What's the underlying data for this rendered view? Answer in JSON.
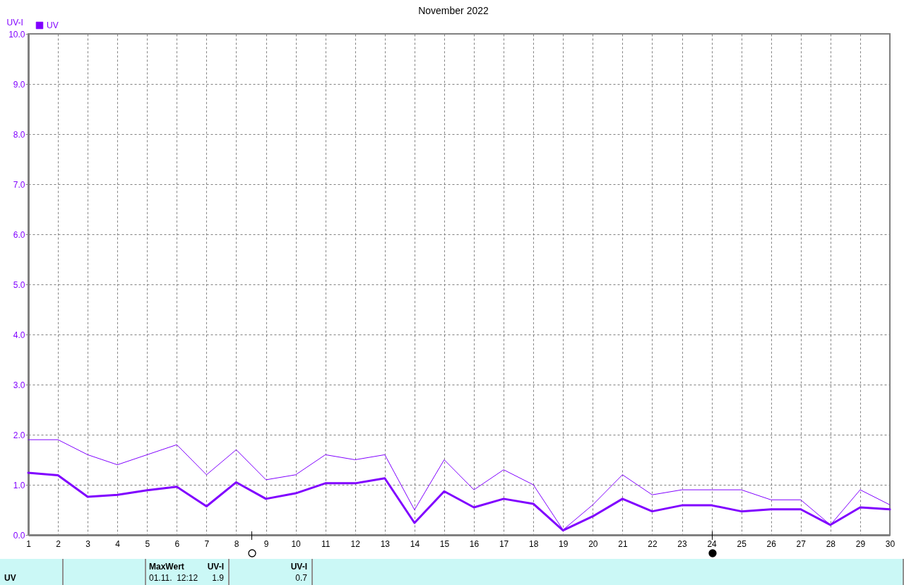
{
  "chart_data": {
    "type": "line",
    "title": "November 2022",
    "ylabel": "UV-I",
    "x": [
      1,
      2,
      3,
      4,
      5,
      6,
      7,
      8,
      9,
      10,
      11,
      12,
      13,
      14,
      15,
      16,
      17,
      18,
      19,
      20,
      21,
      22,
      23,
      24,
      25,
      26,
      27,
      28,
      29,
      30
    ],
    "series": [
      {
        "color": "#8000ff",
        "values": [
          1.9,
          1.9,
          1.6,
          1.4,
          1.6,
          1.8,
          1.2,
          1.7,
          1.1,
          1.2,
          1.6,
          1.5,
          1.6,
          0.5,
          1.5,
          0.9,
          1.3,
          1.0,
          0.1,
          0.6,
          1.2,
          0.8,
          0.9,
          0.9,
          0.9,
          0.7,
          0.7,
          0.2,
          0.9,
          0.6
        ]
      },
      {
        "name": "UV",
        "color": "#8000ff",
        "values": [
          1.24,
          1.19,
          0.76,
          0.8,
          0.89,
          0.96,
          0.57,
          1.05,
          0.72,
          0.83,
          1.03,
          1.03,
          1.13,
          0.24,
          0.87,
          0.55,
          0.72,
          0.62,
          0.09,
          0.37,
          0.72,
          0.47,
          0.59,
          0.59,
          0.47,
          0.51,
          0.51,
          0.2,
          0.55,
          0.51
        ]
      }
    ],
    "xlim": [
      1,
      30
    ],
    "xticks": [
      1,
      2,
      3,
      4,
      5,
      6,
      7,
      8,
      9,
      10,
      11,
      12,
      13,
      14,
      15,
      16,
      17,
      18,
      19,
      20,
      21,
      22,
      23,
      24,
      25,
      26,
      27,
      28,
      29,
      30
    ],
    "ylim": [
      0,
      10
    ],
    "yticks": [
      {
        "value": 0,
        "label": "0.0"
      },
      {
        "value": 1,
        "label": "1.0"
      },
      {
        "value": 2,
        "label": "2.0"
      },
      {
        "value": 3,
        "label": "3.0"
      },
      {
        "value": 4,
        "label": "4.0"
      },
      {
        "value": 5,
        "label": "5.0"
      },
      {
        "value": 6,
        "label": "6.0"
      },
      {
        "value": 7,
        "label": "7.0"
      },
      {
        "value": 8,
        "label": "8.0"
      },
      {
        "value": 9,
        "label": "9.0"
      },
      {
        "value": 10,
        "label": "10.0"
      }
    ],
    "grid": true,
    "legend": "top left",
    "annotations": [
      "UV",
      "MaxWert",
      "UV-I",
      "01.11.  12:12",
      "1.9",
      "UV-I",
      "0.7"
    ]
  }
}
